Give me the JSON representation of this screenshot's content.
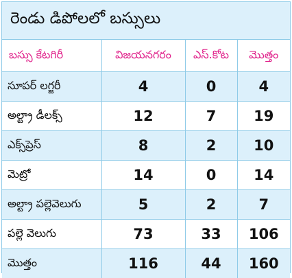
{
  "title": "రెండు డిపోలలో బస్సులు",
  "headers": [
    "బస్సు కేటగిరీ",
    "విజయనగరం",
    "ఎస్.కోట",
    "మొత్తం"
  ],
  "rows": [
    {
      "category": "సూపర్ లగ్జరీ",
      "vizianagaram": "4",
      "s_kota": "0",
      "total": "4"
    },
    {
      "category": "అల్ట్రా డీలక్స్",
      "vizianagaram": "12",
      "s_kota": "7",
      "total": "19"
    },
    {
      "category": "ఎక్స్‌ప్రెస్",
      "vizianagaram": "8",
      "s_kota": "2",
      "total": "10"
    },
    {
      "category": "మెట్రో",
      "vizianagaram": "14",
      "s_kota": "0",
      "total": "14"
    },
    {
      "category": "అల్ట్రా పల్లెవెలుగు",
      "vizianagaram": "5",
      "s_kota": "2",
      "total": "7"
    },
    {
      "category": "పల్లె వెలుగు",
      "vizianagaram": "73",
      "s_kota": "33",
      "total": "106"
    },
    {
      "category": "మొత్తం",
      "vizianagaram": "116",
      "s_kota": "44",
      "total": "160"
    }
  ],
  "colors": {
    "accent": "#e0208a",
    "border": "#8fcbe8",
    "shade": "#dcf0fb"
  }
}
